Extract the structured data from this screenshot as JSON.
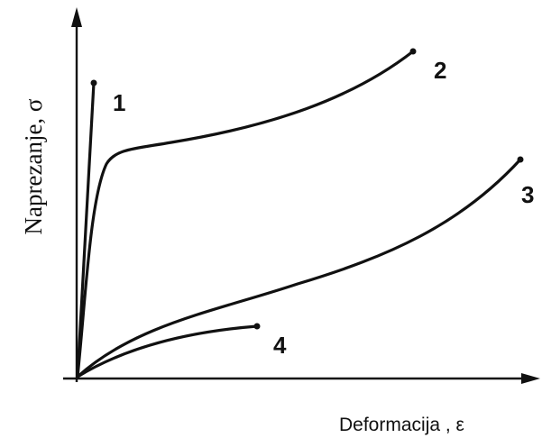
{
  "axes": {
    "y_label": "Naprezanje, σ",
    "x_label": "Deformacija , ε"
  },
  "curves": [
    {
      "label": "1"
    },
    {
      "label": "2"
    },
    {
      "label": "3"
    },
    {
      "label": "4"
    }
  ]
}
